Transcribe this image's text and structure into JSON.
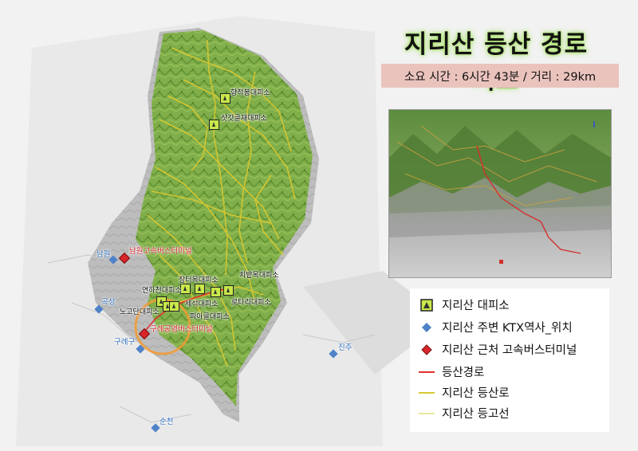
{
  "title": "지리산 등산 경로 지도",
  "info": "소요 시간 : 6시간 43분 / 거리 : 29km",
  "shelters": [
    {
      "name": "장터목대피소"
    },
    {
      "name": "연하천대피소"
    },
    {
      "name": "노고단대피소"
    },
    {
      "name": "치밭목대피소"
    },
    {
      "name": "세석대피소"
    },
    {
      "name": "로타리대피소"
    },
    {
      "name": "피아골대피소"
    },
    {
      "name": "향적봉대피소"
    },
    {
      "name": "삿갓골재대피소"
    }
  ],
  "ktx_stations": [
    {
      "name": "남원"
    },
    {
      "name": "곡성"
    },
    {
      "name": "구례구"
    },
    {
      "name": "진주"
    },
    {
      "name": "순천"
    }
  ],
  "bus_terminals": [
    {
      "name": "남원고속버스터미널"
    },
    {
      "name": "구례공영버스터미널"
    }
  ],
  "legend": {
    "shelter": "지리산 대피소",
    "ktx": "지리산 주변 KTX역사_위치",
    "bus": "지리산 근처 고속버스터미널",
    "route": "등산경로",
    "trail": "지리산 등산로",
    "contour": "지리산 등고선"
  },
  "colors": {
    "route": "#e03030",
    "trail": "#d8c830",
    "contour": "#e6e6a0",
    "shelter_fill": "#c9e84a",
    "ktx": "#4f82c8",
    "bus": "#d9262a",
    "title_glow": "#a8e06a",
    "info_bg": "#ebc3bd"
  }
}
